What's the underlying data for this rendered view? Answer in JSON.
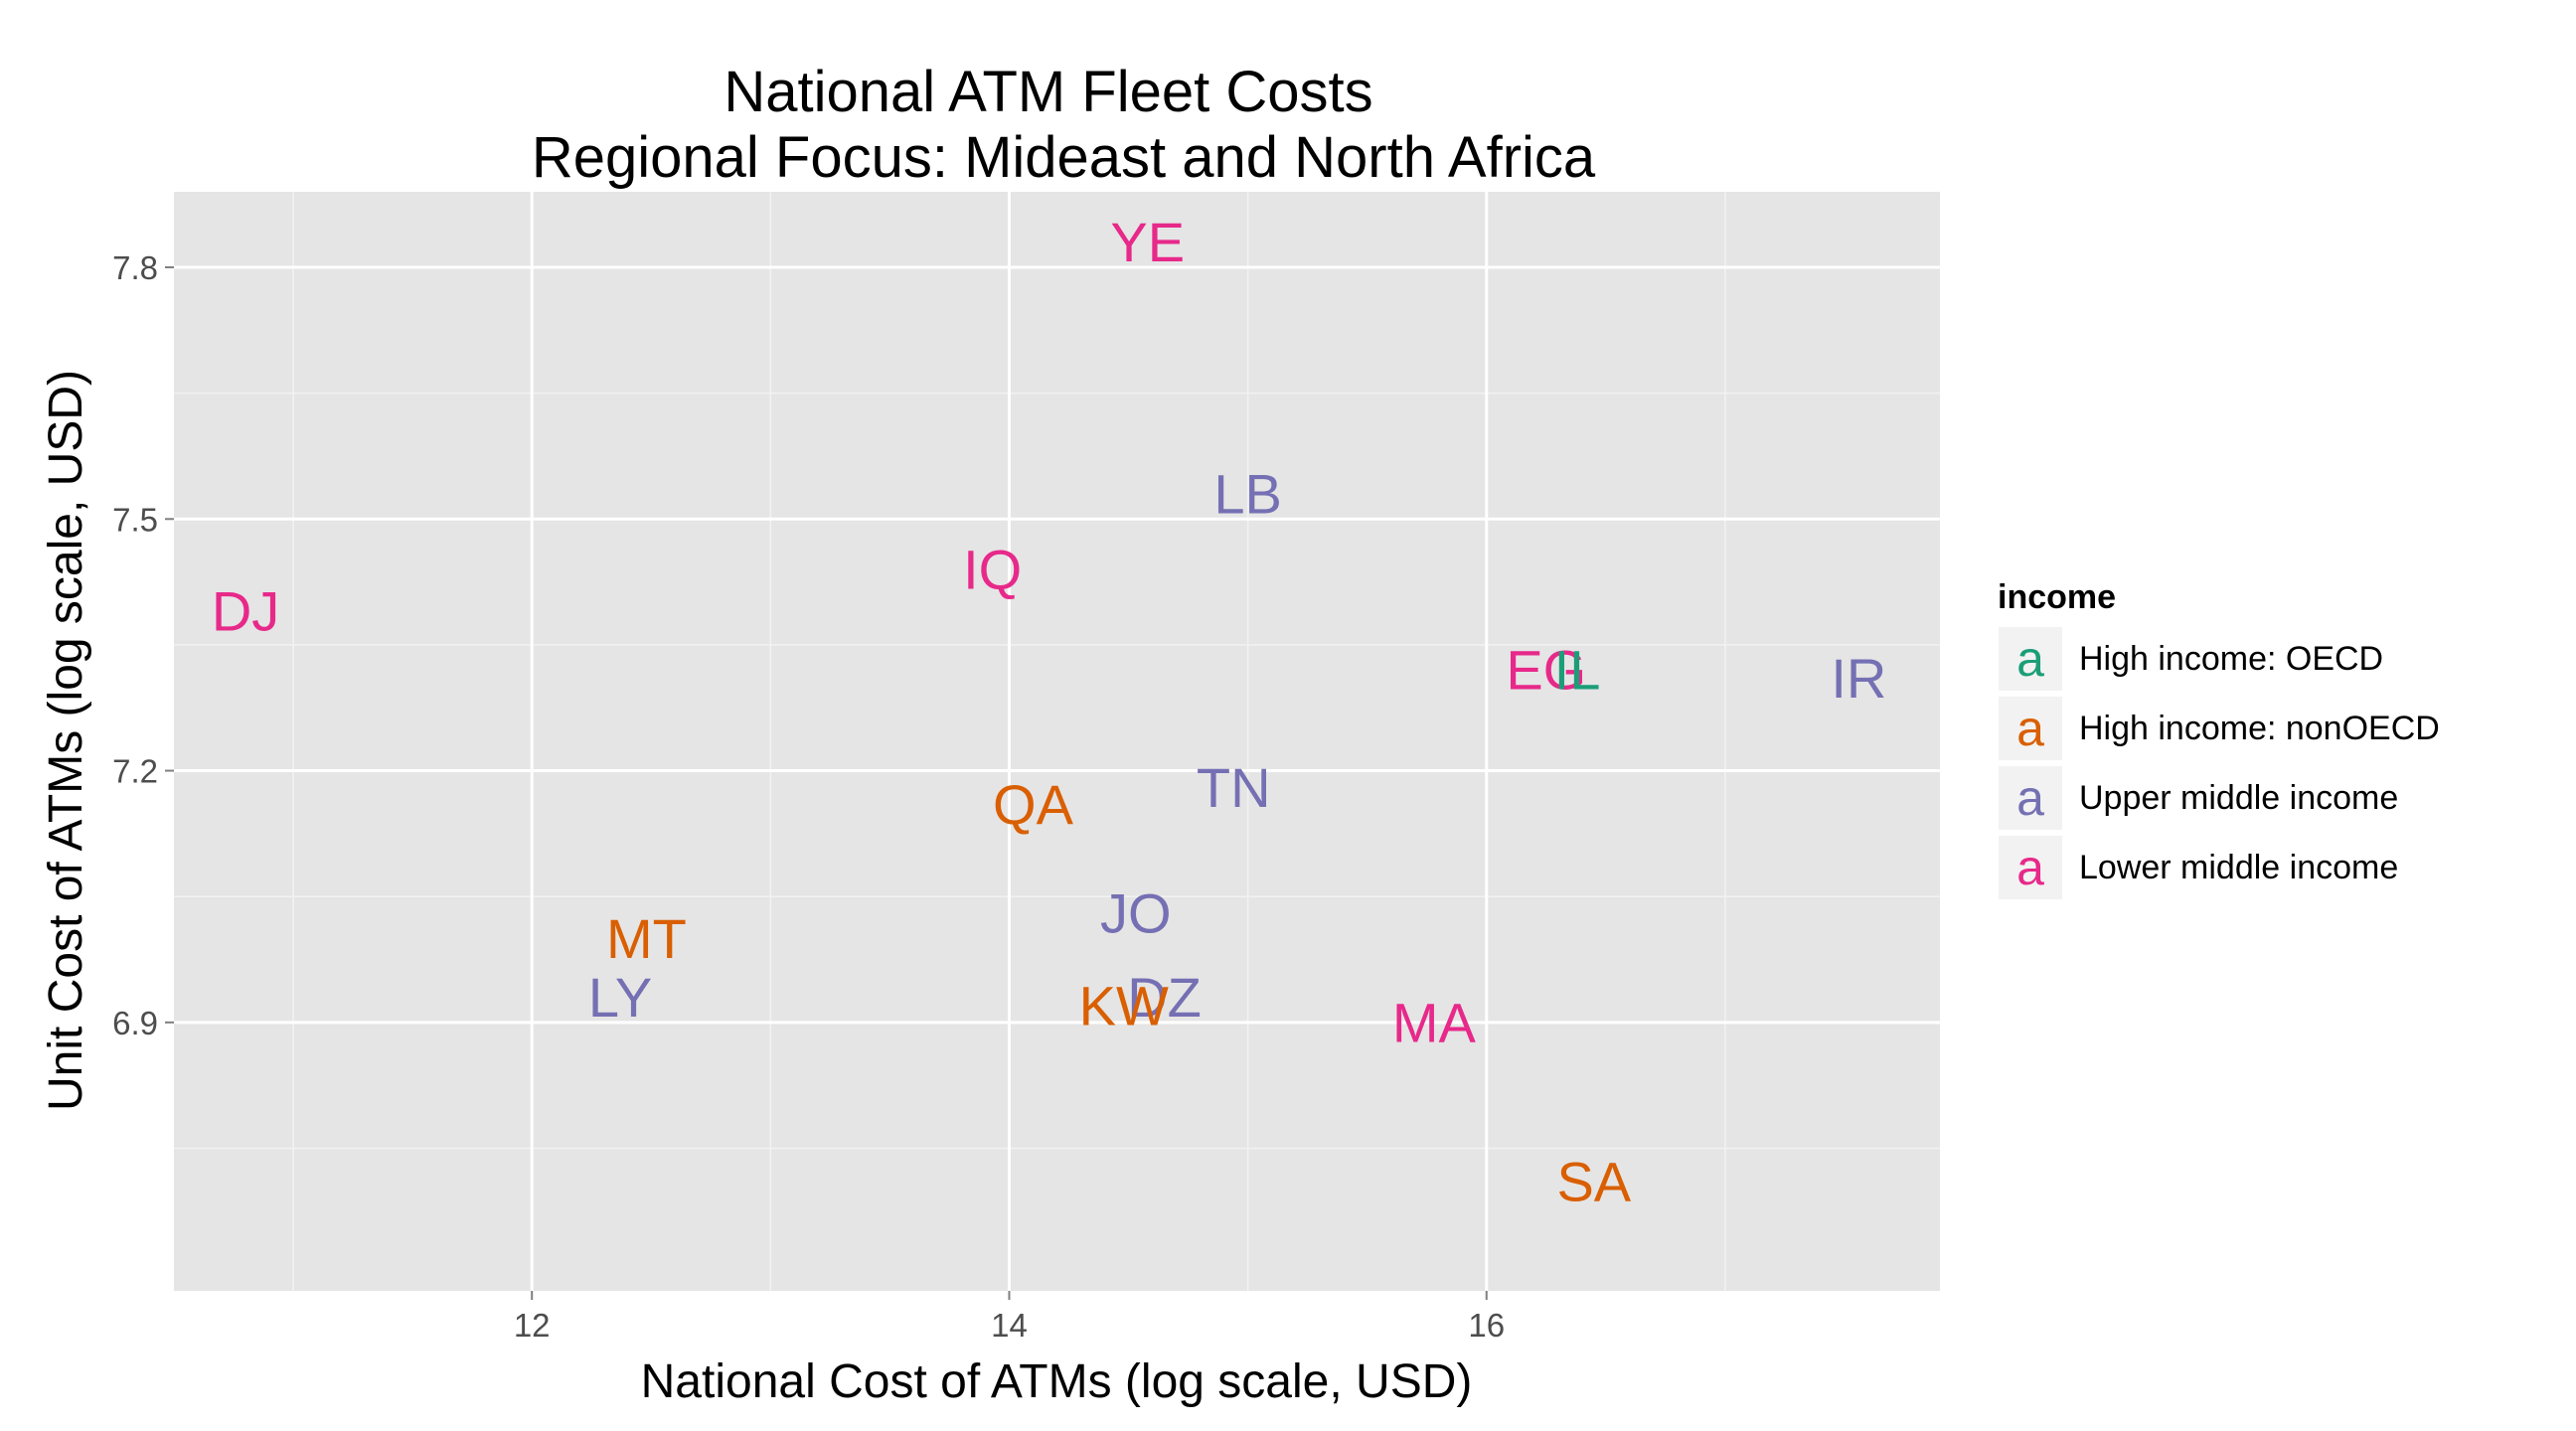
{
  "chart_data": {
    "type": "scatter",
    "title": "National ATM Fleet Costs",
    "subtitle": "Regional Focus: Mideast and North Africa",
    "xlabel": "National Cost of ATMs (log scale, USD)",
    "ylabel": "Unit Cost of ATMs (log scale, USD)",
    "xlim": [
      10.5,
      17.9
    ],
    "ylim": [
      6.58,
      7.89
    ],
    "x_ticks": [
      12,
      14,
      16
    ],
    "y_ticks": [
      6.9,
      7.2,
      7.5,
      7.8
    ],
    "x_tick_labels": [
      "12",
      "14",
      "16"
    ],
    "y_tick_labels": [
      "6.9",
      "7.2",
      "7.5",
      "7.8"
    ],
    "grid": true,
    "legend": {
      "title": "income",
      "placement": "right",
      "key_glyph": "a",
      "entries": [
        {
          "label": "High income: OECD",
          "color": "#1b9e77"
        },
        {
          "label": "High income: nonOECD",
          "color": "#d95f02"
        },
        {
          "label": "Upper middle income",
          "color": "#7570b3"
        },
        {
          "label": "Lower middle income",
          "color": "#e7298a"
        }
      ]
    },
    "points": [
      {
        "label": "YE",
        "x": 14.58,
        "y": 7.83,
        "group": 3
      },
      {
        "label": "LB",
        "x": 15.0,
        "y": 7.53,
        "group": 2
      },
      {
        "label": "IQ",
        "x": 13.93,
        "y": 7.44,
        "group": 3
      },
      {
        "label": "DJ",
        "x": 10.8,
        "y": 7.39,
        "group": 3
      },
      {
        "label": "EG",
        "x": 16.25,
        "y": 7.32,
        "group": 3
      },
      {
        "label": "IL",
        "x": 16.38,
        "y": 7.32,
        "group": 0
      },
      {
        "label": "IR",
        "x": 17.56,
        "y": 7.31,
        "group": 2
      },
      {
        "label": "TN",
        "x": 14.94,
        "y": 7.18,
        "group": 2
      },
      {
        "label": "QA",
        "x": 14.1,
        "y": 7.16,
        "group": 1
      },
      {
        "label": "JO",
        "x": 14.53,
        "y": 7.03,
        "group": 2
      },
      {
        "label": "MT",
        "x": 12.48,
        "y": 7.0,
        "group": 1
      },
      {
        "label": "LY",
        "x": 12.37,
        "y": 6.93,
        "group": 2
      },
      {
        "label": "DZ",
        "x": 14.65,
        "y": 6.93,
        "group": 2
      },
      {
        "label": "KW",
        "x": 14.48,
        "y": 6.92,
        "group": 1
      },
      {
        "label": "MA",
        "x": 15.78,
        "y": 6.9,
        "group": 3
      },
      {
        "label": "SA",
        "x": 16.45,
        "y": 6.71,
        "group": 1
      }
    ]
  }
}
